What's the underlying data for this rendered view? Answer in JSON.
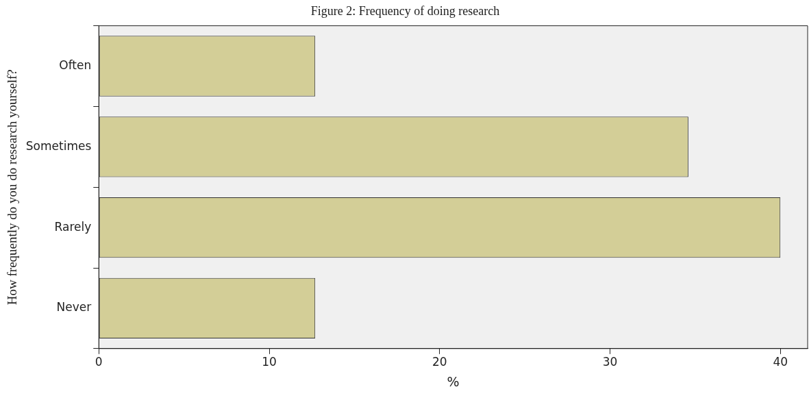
{
  "chart_data": {
    "type": "bar",
    "orientation": "horizontal",
    "title": "Figure 2: Frequency of doing research",
    "xlabel": "%",
    "ylabel": "How frequently do you do research yourself?",
    "categories": [
      "Often",
      "Sometimes",
      "Rarely",
      "Never"
    ],
    "values": [
      12.7,
      34.6,
      40.0,
      12.7
    ],
    "color": "#d3ce97",
    "xlim": [
      0,
      41.6
    ],
    "xticks": [
      0,
      10,
      20,
      30,
      40
    ],
    "grid": false,
    "legend": false
  }
}
